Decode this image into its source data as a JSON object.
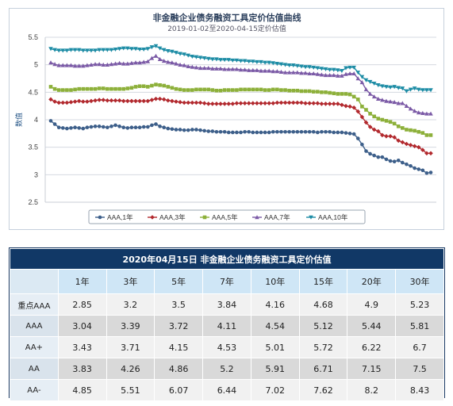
{
  "chart_data": {
    "type": "line",
    "title": "非金融企业债务融资工具定价估值曲线",
    "subtitle": "2019-01-02至2020-04-15定价估值",
    "ylabel": "数值",
    "ylim": [
      2.5,
      5.5
    ],
    "yticks": [
      "2.5",
      "3",
      "3.5",
      "4",
      "4.5",
      "5",
      "5.5"
    ],
    "grid": true,
    "legend_position": "bottom",
    "x_start": "2019-01-02",
    "x_end": "2020-04-15",
    "series": [
      {
        "name": "AAA,1年",
        "color": "#3d5f8a",
        "marker": "circle",
        "values": [
          3.98,
          3.92,
          3.86,
          3.85,
          3.84,
          3.85,
          3.86,
          3.85,
          3.84,
          3.86,
          3.87,
          3.88,
          3.88,
          3.87,
          3.86,
          3.88,
          3.9,
          3.88,
          3.86,
          3.85,
          3.86,
          3.86,
          3.86,
          3.87,
          3.87,
          3.9,
          3.92,
          3.88,
          3.86,
          3.84,
          3.83,
          3.82,
          3.82,
          3.81,
          3.81,
          3.82,
          3.82,
          3.81,
          3.8,
          3.79,
          3.79,
          3.78,
          3.78,
          3.78,
          3.77,
          3.77,
          3.77,
          3.77,
          3.78,
          3.78,
          3.77,
          3.77,
          3.77,
          3.77,
          3.77,
          3.78,
          3.78,
          3.78,
          3.78,
          3.78,
          3.78,
          3.78,
          3.78,
          3.78,
          3.78,
          3.78,
          3.77,
          3.78,
          3.78,
          3.78,
          3.77,
          3.77,
          3.77,
          3.76,
          3.75,
          3.74,
          3.66,
          3.55,
          3.43,
          3.38,
          3.35,
          3.32,
          3.32,
          3.28,
          3.25,
          3.24,
          3.26,
          3.22,
          3.19,
          3.16,
          3.12,
          3.1,
          3.08,
          3.03,
          3.04
        ]
      },
      {
        "name": "AAA,3年",
        "color": "#b2292e",
        "marker": "diamond",
        "values": [
          4.37,
          4.33,
          4.31,
          4.31,
          4.31,
          4.32,
          4.33,
          4.34,
          4.33,
          4.33,
          4.34,
          4.35,
          4.36,
          4.36,
          4.35,
          4.35,
          4.35,
          4.35,
          4.34,
          4.34,
          4.34,
          4.34,
          4.34,
          4.34,
          4.34,
          4.36,
          4.38,
          4.38,
          4.37,
          4.35,
          4.34,
          4.33,
          4.32,
          4.31,
          4.31,
          4.31,
          4.31,
          4.31,
          4.3,
          4.29,
          4.29,
          4.29,
          4.29,
          4.29,
          4.29,
          4.29,
          4.3,
          4.3,
          4.3,
          4.3,
          4.3,
          4.3,
          4.3,
          4.3,
          4.3,
          4.3,
          4.31,
          4.31,
          4.31,
          4.31,
          4.31,
          4.31,
          4.31,
          4.3,
          4.3,
          4.3,
          4.3,
          4.29,
          4.29,
          4.29,
          4.29,
          4.29,
          4.27,
          4.25,
          4.24,
          4.22,
          4.15,
          4.05,
          3.95,
          3.87,
          3.82,
          3.79,
          3.72,
          3.7,
          3.7,
          3.68,
          3.62,
          3.59,
          3.56,
          3.54,
          3.52,
          3.5,
          3.45,
          3.39,
          3.39
        ]
      },
      {
        "name": "AAA,5年",
        "color": "#8db03a",
        "marker": "square",
        "values": [
          4.6,
          4.56,
          4.54,
          4.54,
          4.54,
          4.54,
          4.55,
          4.56,
          4.56,
          4.56,
          4.56,
          4.56,
          4.57,
          4.57,
          4.56,
          4.56,
          4.56,
          4.56,
          4.56,
          4.57,
          4.58,
          4.6,
          4.61,
          4.61,
          4.6,
          4.62,
          4.64,
          4.63,
          4.62,
          4.6,
          4.58,
          4.56,
          4.55,
          4.54,
          4.54,
          4.54,
          4.55,
          4.55,
          4.55,
          4.55,
          4.54,
          4.53,
          4.53,
          4.54,
          4.54,
          4.54,
          4.54,
          4.55,
          4.55,
          4.55,
          4.55,
          4.55,
          4.55,
          4.54,
          4.54,
          4.55,
          4.55,
          4.54,
          4.54,
          4.53,
          4.53,
          4.53,
          4.52,
          4.52,
          4.52,
          4.51,
          4.51,
          4.5,
          4.5,
          4.49,
          4.48,
          4.47,
          4.47,
          4.47,
          4.46,
          4.42,
          4.37,
          4.24,
          4.18,
          4.11,
          4.06,
          4.02,
          4.0,
          3.98,
          3.96,
          3.93,
          3.88,
          3.85,
          3.82,
          3.81,
          3.8,
          3.78,
          3.76,
          3.72,
          3.72
        ]
      },
      {
        "name": "AAA,7年",
        "color": "#7b5aa6",
        "marker": "triangle",
        "values": [
          5.04,
          5.01,
          4.99,
          4.99,
          4.99,
          4.99,
          4.98,
          4.98,
          4.98,
          4.99,
          5.0,
          5.01,
          5.01,
          5.0,
          5.0,
          5.01,
          5.02,
          5.03,
          5.02,
          5.02,
          5.03,
          5.04,
          5.04,
          5.05,
          5.06,
          5.12,
          5.16,
          5.1,
          5.07,
          5.05,
          5.04,
          5.02,
          5.0,
          4.99,
          4.97,
          4.96,
          4.95,
          4.94,
          4.94,
          4.94,
          4.93,
          4.93,
          4.93,
          4.92,
          4.92,
          4.92,
          4.92,
          4.91,
          4.91,
          4.9,
          4.9,
          4.9,
          4.89,
          4.89,
          4.89,
          4.88,
          4.88,
          4.87,
          4.86,
          4.86,
          4.86,
          4.86,
          4.85,
          4.85,
          4.84,
          4.84,
          4.83,
          4.82,
          4.81,
          4.81,
          4.81,
          4.8,
          4.8,
          4.83,
          4.84,
          4.84,
          4.75,
          4.68,
          4.55,
          4.47,
          4.42,
          4.38,
          4.36,
          4.34,
          4.33,
          4.32,
          4.3,
          4.3,
          4.25,
          4.2,
          4.16,
          4.13,
          4.12,
          4.11,
          4.11
        ]
      },
      {
        "name": "AAA,10年",
        "color": "#1d8ca5",
        "marker": "triangle-down",
        "values": [
          5.29,
          5.27,
          5.26,
          5.26,
          5.26,
          5.27,
          5.27,
          5.27,
          5.26,
          5.26,
          5.26,
          5.26,
          5.27,
          5.27,
          5.27,
          5.27,
          5.28,
          5.29,
          5.3,
          5.3,
          5.29,
          5.29,
          5.28,
          5.28,
          5.29,
          5.32,
          5.34,
          5.3,
          5.27,
          5.25,
          5.24,
          5.22,
          5.2,
          5.19,
          5.17,
          5.15,
          5.14,
          5.13,
          5.12,
          5.11,
          5.1,
          5.1,
          5.09,
          5.09,
          5.09,
          5.08,
          5.08,
          5.07,
          5.07,
          5.06,
          5.06,
          5.05,
          5.05,
          5.04,
          5.04,
          5.03,
          5.02,
          5.01,
          5.0,
          4.99,
          4.99,
          4.98,
          4.97,
          4.96,
          4.96,
          4.95,
          4.94,
          4.93,
          4.92,
          4.91,
          4.91,
          4.9,
          4.89,
          4.94,
          4.95,
          4.95,
          4.86,
          4.78,
          4.72,
          4.69,
          4.66,
          4.63,
          4.61,
          4.6,
          4.59,
          4.6,
          4.58,
          4.57,
          4.52,
          4.55,
          4.57,
          4.55,
          4.54,
          4.54,
          4.54
        ]
      }
    ]
  },
  "table": {
    "title": "2020年04月15日  非金融企业债务融资工具定价估值",
    "corner": "",
    "columns": [
      "1年",
      "3年",
      "5年",
      "7年",
      "10年",
      "15年",
      "20年",
      "30年"
    ],
    "rows": [
      {
        "label": "重点AAA",
        "values": [
          "2.85",
          "3.2",
          "3.5",
          "3.84",
          "4.16",
          "4.68",
          "4.9",
          "5.23"
        ]
      },
      {
        "label": "AAA",
        "values": [
          "3.04",
          "3.39",
          "3.72",
          "4.11",
          "4.54",
          "5.12",
          "5.44",
          "5.81"
        ]
      },
      {
        "label": "AA+",
        "values": [
          "3.43",
          "3.71",
          "4.15",
          "4.53",
          "5.01",
          "5.72",
          "6.22",
          "6.7"
        ]
      },
      {
        "label": "AA",
        "values": [
          "3.83",
          "4.26",
          "4.86",
          "5.2",
          "5.91",
          "6.71",
          "7.15",
          "7.5"
        ]
      },
      {
        "label": "AA-",
        "values": [
          "4.85",
          "5.51",
          "6.07",
          "6.44",
          "7.02",
          "7.62",
          "8.2",
          "8.43"
        ]
      }
    ]
  }
}
